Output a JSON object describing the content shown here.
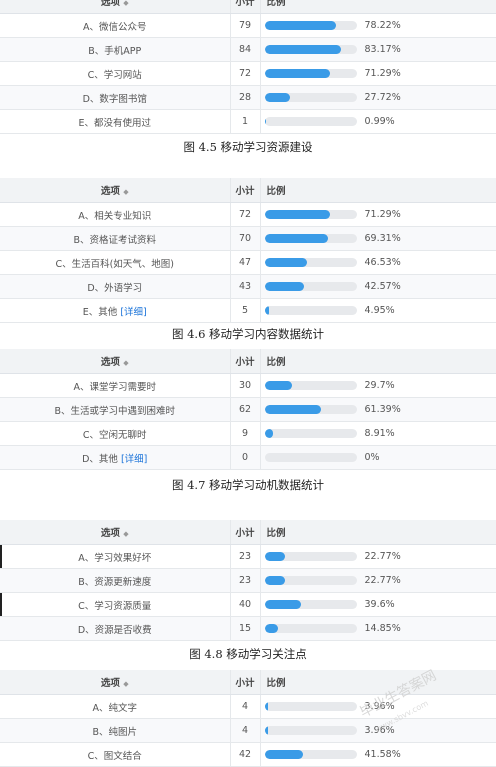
{
  "header": {
    "option": "选项",
    "count": "小计",
    "ratio": "比例"
  },
  "tables": [
    {
      "rows": [
        {
          "option": "A、微信公众号",
          "count": "79",
          "pct": "78.22%",
          "fill": 0.7822
        },
        {
          "option": "B、手机APP",
          "count": "84",
          "pct": "83.17%",
          "fill": 0.8317
        },
        {
          "option": "C、学习网站",
          "count": "72",
          "pct": "71.29%",
          "fill": 0.7129
        },
        {
          "option": "D、数字图书馆",
          "count": "28",
          "pct": "27.72%",
          "fill": 0.2772
        },
        {
          "option": "E、都没有使用过",
          "count": "1",
          "pct": "0.99%",
          "fill": 0.0099
        }
      ]
    },
    {
      "rows": [
        {
          "option": "A、相关专业知识",
          "count": "72",
          "pct": "71.29%",
          "fill": 0.7129
        },
        {
          "option": "B、资格证考试资料",
          "count": "70",
          "pct": "69.31%",
          "fill": 0.6931
        },
        {
          "option": "C、生活百科(如天气、地图)",
          "count": "47",
          "pct": "46.53%",
          "fill": 0.4653
        },
        {
          "option": "D、外语学习",
          "count": "43",
          "pct": "42.57%",
          "fill": 0.4257
        },
        {
          "option": "E、其他",
          "link": "[详细]",
          "count": "5",
          "pct": "4.95%",
          "fill": 0.0495
        }
      ]
    },
    {
      "rows": [
        {
          "option": "A、课堂学习需要时",
          "count": "30",
          "pct": "29.7%",
          "fill": 0.297
        },
        {
          "option": "B、生活或学习中遇到困难时",
          "count": "62",
          "pct": "61.39%",
          "fill": 0.6139
        },
        {
          "option": "C、空闲无聊时",
          "count": "9",
          "pct": "8.91%",
          "fill": 0.0891
        },
        {
          "option": "D、其他",
          "link": "[详细]",
          "count": "0",
          "pct": "0%",
          "fill": 0
        }
      ]
    },
    {
      "rows": [
        {
          "option": "A、学习效果好坏",
          "count": "23",
          "pct": "22.77%",
          "fill": 0.2277
        },
        {
          "option": "B、资源更新速度",
          "count": "23",
          "pct": "22.77%",
          "fill": 0.2277
        },
        {
          "option": "C、学习资源质量",
          "count": "40",
          "pct": "39.6%",
          "fill": 0.396
        },
        {
          "option": "D、资源是否收费",
          "count": "15",
          "pct": "14.85%",
          "fill": 0.1485
        }
      ]
    },
    {
      "rows": [
        {
          "option": "A、纯文字",
          "count": "4",
          "pct": "3.96%",
          "fill": 0.0396
        },
        {
          "option": "B、纯图片",
          "count": "4",
          "pct": "3.96%",
          "fill": 0.0396
        },
        {
          "option": "C、图文结合",
          "count": "42",
          "pct": "41.58%",
          "fill": 0.4158
        }
      ]
    }
  ],
  "captions": {
    "c1": "图 4.5   移动学习资源建设",
    "c2": "图 4.6   移动学习内容数据统计",
    "c3": "图 4.7   移动学习动机数据统计",
    "c4": "图 4.8   移动学习关注点"
  },
  "watermark": {
    "main": "毕业生答案网",
    "sub": "www.sbvv.com"
  },
  "colors": {
    "bar": "#3a9be7",
    "track": "#e7e9ec"
  }
}
